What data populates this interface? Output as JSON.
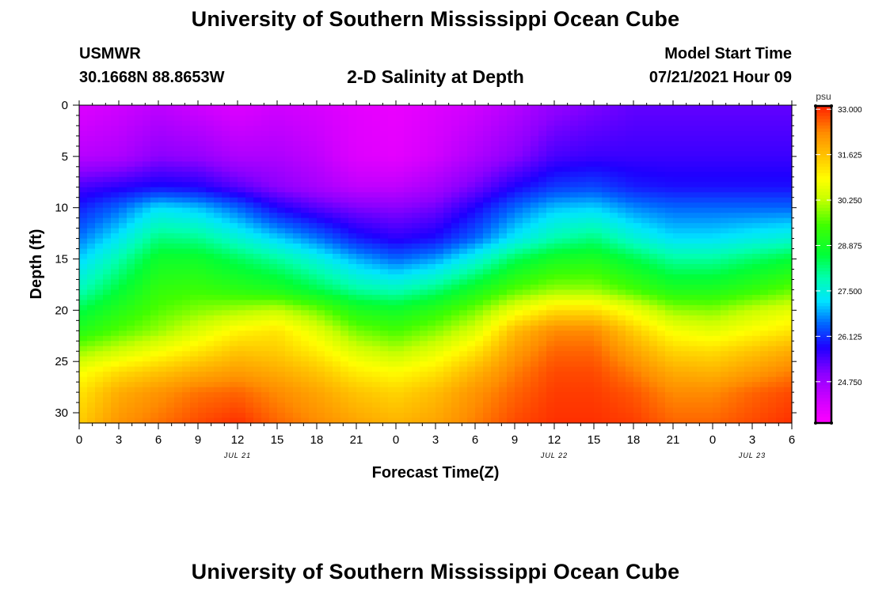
{
  "header": {
    "title": "University of Southern Mississippi Ocean Cube",
    "station": "USMWR",
    "coords": "30.1668N  88.8653W",
    "subtitle": "2-D Salinity at Depth",
    "start_label": "Model Start Time",
    "start_value": "07/21/2021 Hour 09"
  },
  "footer": {
    "title": "University of Southern Mississippi Ocean Cube"
  },
  "chart_data": {
    "type": "heatmap",
    "title": "2-D Salinity at Depth",
    "xlabel": "Forecast Time(Z)",
    "ylabel": "Depth (ft)",
    "x_ticks": [
      "0",
      "3",
      "6",
      "9",
      "12",
      "15",
      "18",
      "21",
      "0",
      "3",
      "6",
      "9",
      "12",
      "15",
      "18",
      "21",
      "0",
      "3",
      "6"
    ],
    "x_range_hours": [
      0,
      54
    ],
    "date_labels": [
      {
        "label": "JUL 21",
        "hour": 12
      },
      {
        "label": "JUL 22",
        "hour": 36
      },
      {
        "label": "JUL 23",
        "hour": 51
      }
    ],
    "y_ticks": [
      0,
      5,
      10,
      15,
      20,
      25,
      30
    ],
    "ylim": [
      0,
      31
    ],
    "colorbar": {
      "unit": "psu",
      "range": [
        23.5,
        33.1
      ],
      "labels": [
        "33.000",
        "31.625",
        "30.250",
        "28.875",
        "27.500",
        "26.125",
        "24.750"
      ],
      "label_values": [
        33.0,
        31.625,
        30.25,
        28.875,
        27.5,
        26.125,
        24.75
      ],
      "colors": [
        {
          "v": 23.5,
          "c": "#ff00ff"
        },
        {
          "v": 24.2,
          "c": "#d000ff"
        },
        {
          "v": 25.0,
          "c": "#8c00ff"
        },
        {
          "v": 25.8,
          "c": "#1e00ff"
        },
        {
          "v": 26.5,
          "c": "#0064ff"
        },
        {
          "v": 27.2,
          "c": "#00e4ff"
        },
        {
          "v": 27.9,
          "c": "#00ffb0"
        },
        {
          "v": 28.6,
          "c": "#00ff38"
        },
        {
          "v": 29.5,
          "c": "#40ff00"
        },
        {
          "v": 30.3,
          "c": "#c8ff00"
        },
        {
          "v": 30.9,
          "c": "#ffff00"
        },
        {
          "v": 31.6,
          "c": "#ffc400"
        },
        {
          "v": 32.3,
          "c": "#ff8c00"
        },
        {
          "v": 33.1,
          "c": "#ff2200"
        }
      ]
    },
    "depth_levels_ft": [
      0,
      5,
      8,
      10,
      13,
      15,
      18,
      20,
      22,
      24,
      26,
      28,
      31
    ],
    "time_hours": [
      0,
      3,
      6,
      9,
      12,
      15,
      18,
      21,
      24,
      27,
      30,
      33,
      36,
      39,
      42,
      45,
      48,
      51,
      54
    ],
    "salinity_psu": [
      [
        24.0,
        24.2,
        24.4,
        24.2,
        24.0,
        24.2,
        24.1,
        23.9,
        23.8,
        24.0,
        24.2,
        24.5,
        24.9,
        25.1,
        25.3,
        25.3,
        25.3,
        25.3,
        25.3
      ],
      [
        24.5,
        24.6,
        25.0,
        24.9,
        24.6,
        24.6,
        24.4,
        24.0,
        23.9,
        24.2,
        24.6,
        25.0,
        25.5,
        25.6,
        25.6,
        25.6,
        25.6,
        25.6,
        25.6
      ],
      [
        25.5,
        25.7,
        25.9,
        25.8,
        25.4,
        25.0,
        24.7,
        24.4,
        24.4,
        24.7,
        25.2,
        25.8,
        26.2,
        26.3,
        26.0,
        25.9,
        25.9,
        25.9,
        25.9
      ],
      [
        26.0,
        26.5,
        27.2,
        27.0,
        26.5,
        25.8,
        25.4,
        25.1,
        25.0,
        25.2,
        25.8,
        26.5,
        27.0,
        27.1,
        26.7,
        26.5,
        26.5,
        26.5,
        26.5
      ],
      [
        26.6,
        27.3,
        28.2,
        28.1,
        27.6,
        27.1,
        26.6,
        26.0,
        25.7,
        25.9,
        26.5,
        27.3,
        27.9,
        28.2,
        27.6,
        27.2,
        27.2,
        27.4,
        27.6
      ],
      [
        27.1,
        27.9,
        28.8,
        28.8,
        28.4,
        28.0,
        27.5,
        26.9,
        26.5,
        26.8,
        27.5,
        28.4,
        28.9,
        29.0,
        28.5,
        28.0,
        28.0,
        28.3,
        28.6
      ],
      [
        27.8,
        28.6,
        29.3,
        29.4,
        29.2,
        29.0,
        28.5,
        28.0,
        27.8,
        28.2,
        28.9,
        29.6,
        30.0,
        30.0,
        29.5,
        29.0,
        29.0,
        29.3,
        29.7
      ],
      [
        28.5,
        29.1,
        29.6,
        29.9,
        30.1,
        30.3,
        29.8,
        29.0,
        28.8,
        29.2,
        29.8,
        30.7,
        31.3,
        31.3,
        30.7,
        30.0,
        29.9,
        30.3,
        30.6
      ],
      [
        29.1,
        29.6,
        30.0,
        30.5,
        31.0,
        31.2,
        30.6,
        29.8,
        29.5,
        29.9,
        30.5,
        31.7,
        32.3,
        32.3,
        31.5,
        30.8,
        30.6,
        30.9,
        31.2
      ],
      [
        30.0,
        30.4,
        30.8,
        31.2,
        31.6,
        31.5,
        31.1,
        30.5,
        30.2,
        30.6,
        31.2,
        32.1,
        32.6,
        32.6,
        32.0,
        31.4,
        31.3,
        31.6,
        31.9
      ],
      [
        30.8,
        31.3,
        31.6,
        31.9,
        32.1,
        31.9,
        31.6,
        31.1,
        30.9,
        31.2,
        31.8,
        32.4,
        32.8,
        32.8,
        32.4,
        31.9,
        31.8,
        32.1,
        32.4
      ],
      [
        31.2,
        31.9,
        32.2,
        32.5,
        32.6,
        32.3,
        32.0,
        31.6,
        31.4,
        31.7,
        32.2,
        32.6,
        32.9,
        32.9,
        32.7,
        32.3,
        32.3,
        32.6,
        32.8
      ],
      [
        31.5,
        32.2,
        32.5,
        32.8,
        33.0,
        32.6,
        32.3,
        32.0,
        31.8,
        32.0,
        32.4,
        32.8,
        33.0,
        33.0,
        32.9,
        32.6,
        32.6,
        32.8,
        33.0
      ]
    ]
  }
}
